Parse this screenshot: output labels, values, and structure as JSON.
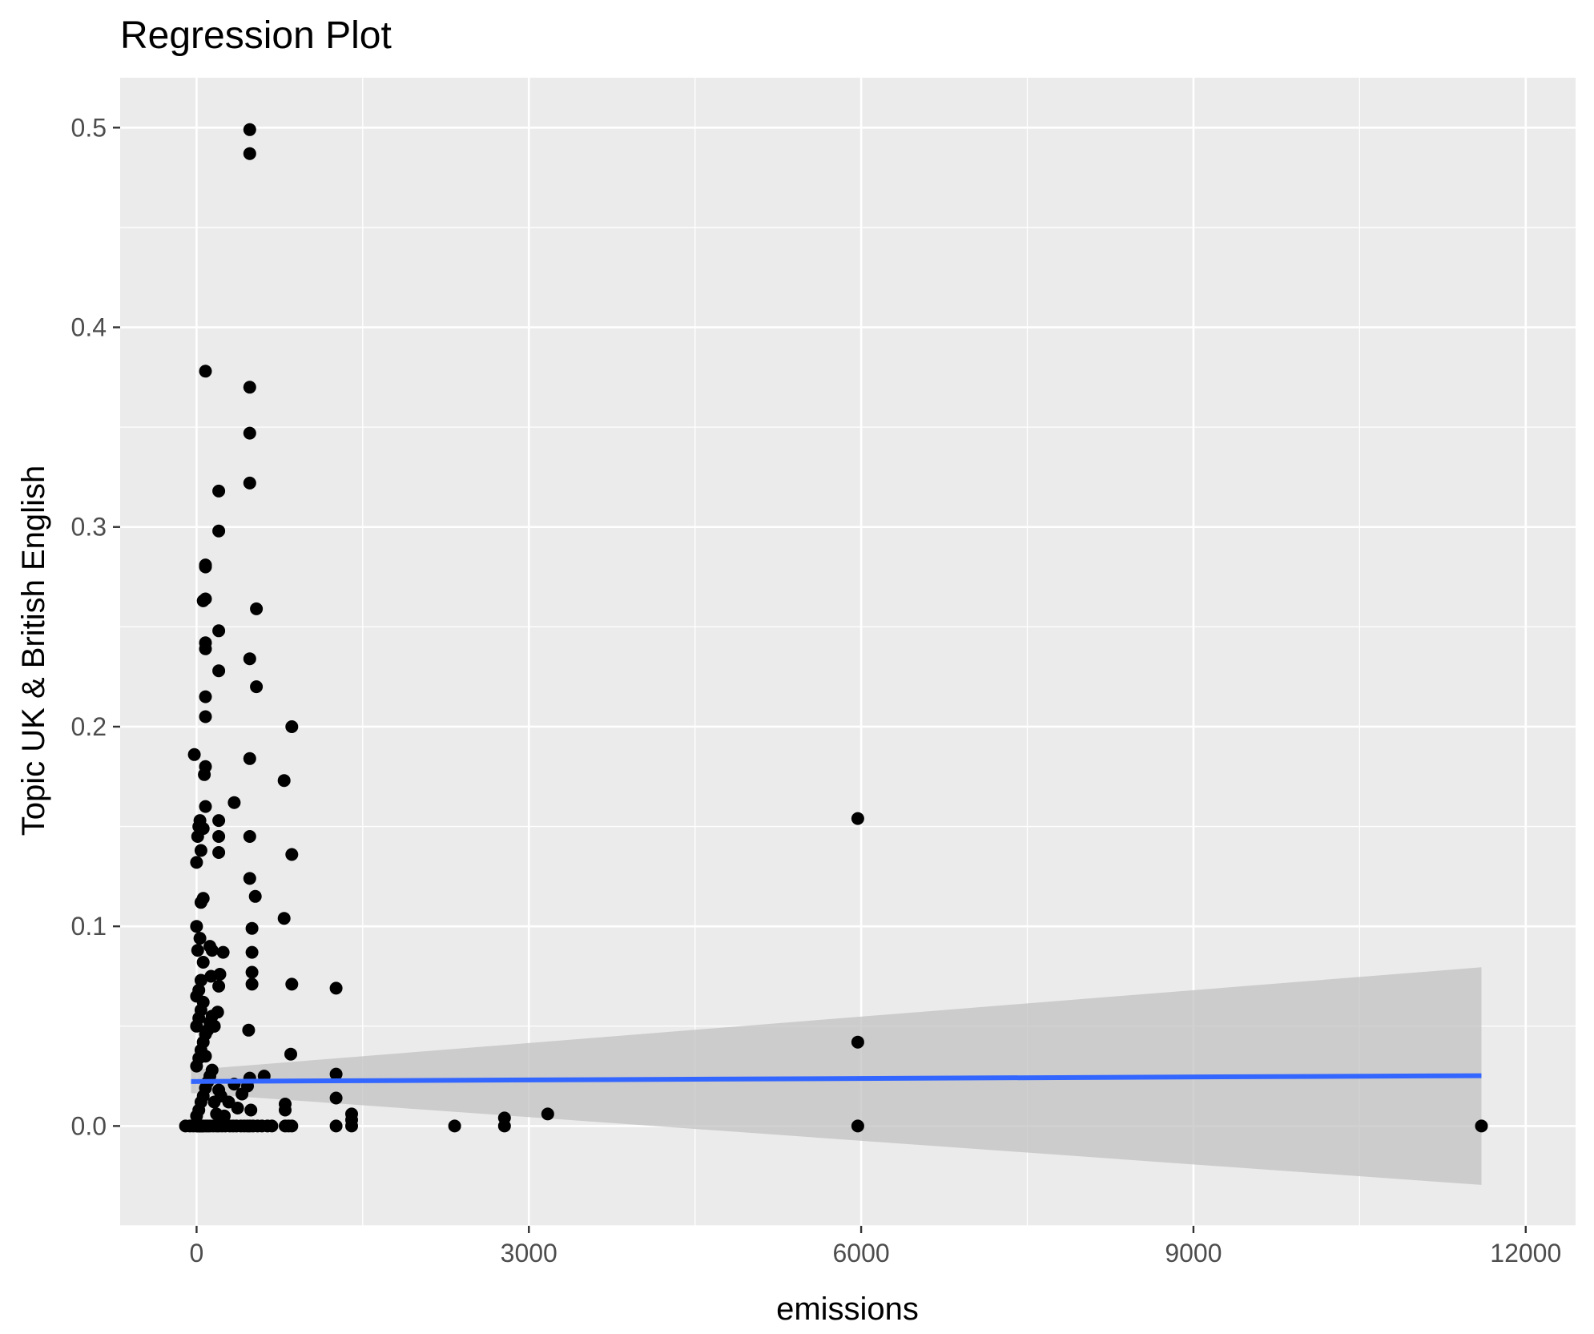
{
  "chart_data": {
    "type": "scatter",
    "title": "Regression Plot",
    "xlabel": "emissions",
    "ylabel": "Topic UK & British English",
    "xlim": [
      -690,
      12450
    ],
    "ylim": [
      -0.05,
      0.525
    ],
    "x_ticks": [
      0,
      3000,
      6000,
      9000,
      12000
    ],
    "x_tick_labels": [
      "0",
      "3000",
      "6000",
      "9000",
      "12000"
    ],
    "y_ticks": [
      0.0,
      0.1,
      0.2,
      0.3,
      0.4,
      0.5
    ],
    "y_tick_labels": [
      "0.0",
      "0.1",
      "0.2",
      "0.3",
      "0.4",
      "0.5"
    ],
    "grid": true,
    "colors": {
      "panel": "#ebebeb",
      "grid": "#ffffff",
      "points": "#000000",
      "fit_line": "#3366ff",
      "ribbon": "#bfbfbf",
      "axis_text": "#4d4d4d",
      "title": "#000000"
    },
    "regression": {
      "x": [
        -50,
        11600
      ],
      "y": [
        0.0223,
        0.0252
      ],
      "ci_lower": [
        0.0165,
        -0.0295
      ],
      "ci_upper": [
        0.0281,
        0.0795
      ]
    },
    "points": [
      [
        -100,
        0.0
      ],
      [
        -60,
        0.0
      ],
      [
        -30,
        0.0
      ],
      [
        0,
        0.0
      ],
      [
        10,
        0.0
      ],
      [
        20,
        0.0
      ],
      [
        30,
        0.0
      ],
      [
        40,
        0.0
      ],
      [
        50,
        0.0
      ],
      [
        60,
        0.0
      ],
      [
        80,
        0.0
      ],
      [
        100,
        0.0
      ],
      [
        120,
        0.0
      ],
      [
        150,
        0.0
      ],
      [
        180,
        0.0
      ],
      [
        200,
        0.0
      ],
      [
        230,
        0.0
      ],
      [
        260,
        0.0
      ],
      [
        300,
        0.0
      ],
      [
        330,
        0.0
      ],
      [
        360,
        0.0
      ],
      [
        400,
        0.0
      ],
      [
        430,
        0.0
      ],
      [
        460,
        0.0
      ],
      [
        480,
        0.0
      ],
      [
        510,
        0.0
      ],
      [
        550,
        0.0
      ],
      [
        590,
        0.0
      ],
      [
        640,
        0.0
      ],
      [
        680,
        0.0
      ],
      [
        800,
        0.0
      ],
      [
        830,
        0.0
      ],
      [
        860,
        0.0
      ],
      [
        1260,
        0.0
      ],
      [
        1400,
        0.0
      ],
      [
        2330,
        0.0
      ],
      [
        2780,
        0.0
      ],
      [
        5970,
        0.0
      ],
      [
        11600,
        0.0
      ],
      [
        0,
        0.005
      ],
      [
        20,
        0.008
      ],
      [
        40,
        0.012
      ],
      [
        60,
        0.015
      ],
      [
        80,
        0.019
      ],
      [
        100,
        0.022
      ],
      [
        120,
        0.025
      ],
      [
        140,
        0.028
      ],
      [
        160,
        0.012
      ],
      [
        180,
        0.006
      ],
      [
        200,
        0.018
      ],
      [
        220,
        0.015
      ],
      [
        250,
        0.005
      ],
      [
        290,
        0.012
      ],
      [
        340,
        0.021
      ],
      [
        370,
        0.009
      ],
      [
        410,
        0.016
      ],
      [
        460,
        0.02
      ],
      [
        480,
        0.024
      ],
      [
        490,
        0.008
      ],
      [
        610,
        0.025
      ],
      [
        800,
        0.011
      ],
      [
        800,
        0.008
      ],
      [
        1260,
        0.026
      ],
      [
        1260,
        0.014
      ],
      [
        1400,
        0.006
      ],
      [
        1400,
        0.003
      ],
      [
        2780,
        0.004
      ],
      [
        3170,
        0.006
      ],
      [
        5970,
        0.042
      ],
      [
        0,
        0.03
      ],
      [
        20,
        0.034
      ],
      [
        40,
        0.038
      ],
      [
        60,
        0.042
      ],
      [
        80,
        0.046
      ],
      [
        0,
        0.05
      ],
      [
        20,
        0.054
      ],
      [
        40,
        0.058
      ],
      [
        60,
        0.062
      ],
      [
        80,
        0.035
      ],
      [
        100,
        0.048
      ],
      [
        120,
        0.052
      ],
      [
        140,
        0.055
      ],
      [
        160,
        0.05
      ],
      [
        190,
        0.057
      ],
      [
        200,
        0.07
      ],
      [
        210,
        0.076
      ],
      [
        240,
        0.087
      ],
      [
        470,
        0.048
      ],
      [
        500,
        0.071
      ],
      [
        500,
        0.077
      ],
      [
        500,
        0.087
      ],
      [
        500,
        0.099
      ],
      [
        530,
        0.115
      ],
      [
        480,
        0.124
      ],
      [
        480,
        0.145
      ],
      [
        790,
        0.104
      ],
      [
        860,
        0.071
      ],
      [
        850,
        0.036
      ],
      [
        1260,
        0.069
      ],
      [
        0,
        0.065
      ],
      [
        20,
        0.068
      ],
      [
        40,
        0.073
      ],
      [
        60,
        0.082
      ],
      [
        10,
        0.088
      ],
      [
        30,
        0.094
      ],
      [
        0,
        0.1
      ],
      [
        40,
        0.112
      ],
      [
        60,
        0.114
      ],
      [
        0,
        0.132
      ],
      [
        40,
        0.138
      ],
      [
        10,
        0.145
      ],
      [
        20,
        0.15
      ],
      [
        30,
        0.153
      ],
      [
        60,
        0.149
      ],
      [
        80,
        0.16
      ],
      [
        70,
        0.176
      ],
      [
        80,
        0.18
      ],
      [
        -20,
        0.186
      ],
      [
        130,
        0.075
      ],
      [
        140,
        0.088
      ],
      [
        120,
        0.09
      ],
      [
        160,
        0.05
      ],
      [
        200,
        0.137
      ],
      [
        200,
        0.145
      ],
      [
        200,
        0.153
      ],
      [
        340,
        0.162
      ],
      [
        790,
        0.173
      ],
      [
        480,
        0.184
      ],
      [
        860,
        0.2
      ],
      [
        80,
        0.205
      ],
      [
        80,
        0.215
      ],
      [
        200,
        0.228
      ],
      [
        80,
        0.239
      ],
      [
        80,
        0.242
      ],
      [
        200,
        0.248
      ],
      [
        60,
        0.263
      ],
      [
        80,
        0.264
      ],
      [
        80,
        0.28
      ],
      [
        80,
        0.281
      ],
      [
        200,
        0.298
      ],
      [
        200,
        0.318
      ],
      [
        480,
        0.322
      ],
      [
        480,
        0.347
      ],
      [
        480,
        0.37
      ],
      [
        80,
        0.378
      ],
      [
        480,
        0.487
      ],
      [
        480,
        0.499
      ],
      [
        540,
        0.22
      ],
      [
        480,
        0.234
      ],
      [
        540,
        0.259
      ],
      [
        860,
        0.136
      ],
      [
        5970,
        0.154
      ]
    ]
  }
}
